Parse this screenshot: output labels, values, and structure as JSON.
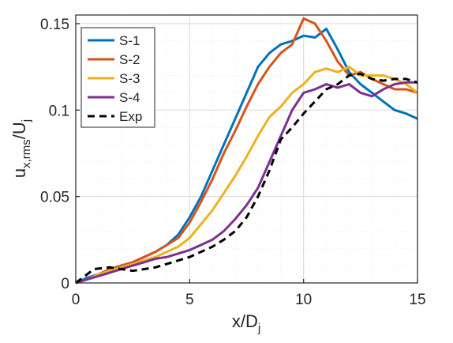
{
  "chart_data": {
    "type": "line",
    "xlabel": "x/D",
    "xlabel_sub": "j",
    "ylabel_main": "u",
    "ylabel_sub1": "x,rms",
    "ylabel_mid": "/U",
    "ylabel_sub2": "j",
    "xlim": [
      0,
      15
    ],
    "ylim": [
      0,
      0.155
    ],
    "xticks": [
      {
        "value": 0,
        "label": "0"
      },
      {
        "value": 5,
        "label": "5"
      },
      {
        "value": 10,
        "label": "10"
      },
      {
        "value": 15,
        "label": "15"
      }
    ],
    "yticks": [
      {
        "value": 0,
        "label": "0"
      },
      {
        "value": 0.05,
        "label": "0.05"
      },
      {
        "value": 0.1,
        "label": "0.1"
      },
      {
        "value": 0.15,
        "label": "0.15"
      }
    ],
    "grid": true,
    "minor_grid": true,
    "legend_position": "top-left",
    "series": [
      {
        "name": "S-1",
        "color": "#0072BD",
        "dash": "solid",
        "x": [
          0,
          0.5,
          1,
          1.5,
          2,
          2.5,
          3,
          3.5,
          4,
          4.5,
          5,
          5.5,
          6,
          6.5,
          7,
          7.5,
          8,
          8.5,
          9,
          9.5,
          10,
          10.5,
          11,
          11.5,
          12,
          12.5,
          13,
          13.5,
          14,
          14.5,
          15
        ],
        "y": [
          0,
          0.003,
          0.005,
          0.008,
          0.01,
          0.012,
          0.015,
          0.018,
          0.022,
          0.028,
          0.038,
          0.05,
          0.065,
          0.08,
          0.095,
          0.11,
          0.125,
          0.133,
          0.138,
          0.14,
          0.143,
          0.142,
          0.147,
          0.135,
          0.122,
          0.115,
          0.11,
          0.105,
          0.1,
          0.098,
          0.095
        ]
      },
      {
        "name": "S-2",
        "color": "#D95319",
        "dash": "solid",
        "x": [
          0,
          0.5,
          1,
          1.5,
          2,
          2.5,
          3,
          3.5,
          4,
          4.5,
          5,
          5.5,
          6,
          6.5,
          7,
          7.5,
          8,
          8.5,
          9,
          9.5,
          10,
          10.5,
          11,
          11.5,
          12,
          12.5,
          13,
          13.5,
          14,
          14.5,
          15
        ],
        "y": [
          0,
          0.002,
          0.005,
          0.008,
          0.01,
          0.012,
          0.015,
          0.018,
          0.022,
          0.026,
          0.035,
          0.047,
          0.06,
          0.075,
          0.088,
          0.102,
          0.115,
          0.125,
          0.133,
          0.138,
          0.153,
          0.15,
          0.14,
          0.128,
          0.12,
          0.122,
          0.118,
          0.115,
          0.112,
          0.112,
          0.11
        ]
      },
      {
        "name": "S-3",
        "color": "#EDB120",
        "dash": "solid",
        "x": [
          0,
          0.5,
          1,
          1.5,
          2,
          2.5,
          3,
          3.5,
          4,
          4.5,
          5,
          5.5,
          6,
          6.5,
          7,
          7.5,
          8,
          8.5,
          9,
          9.5,
          10,
          10.5,
          11,
          11.5,
          12,
          12.5,
          13,
          13.5,
          14,
          14.5,
          15
        ],
        "y": [
          0,
          0.002,
          0.005,
          0.007,
          0.009,
          0.011,
          0.013,
          0.015,
          0.018,
          0.021,
          0.026,
          0.034,
          0.042,
          0.052,
          0.062,
          0.073,
          0.085,
          0.096,
          0.102,
          0.11,
          0.115,
          0.122,
          0.124,
          0.122,
          0.125,
          0.12,
          0.12,
          0.12,
          0.118,
          0.115,
          0.11
        ]
      },
      {
        "name": "S-4",
        "color": "#7E2F8E",
        "dash": "solid",
        "x": [
          0,
          0.5,
          1,
          1.5,
          2,
          2.5,
          3,
          3.5,
          4,
          4.5,
          5,
          5.5,
          6,
          6.5,
          7,
          7.5,
          8,
          8.5,
          9,
          9.5,
          10,
          10.5,
          11,
          11.5,
          12,
          12.5,
          13,
          13.5,
          14,
          14.5,
          15
        ],
        "y": [
          0,
          0.002,
          0.004,
          0.006,
          0.008,
          0.01,
          0.012,
          0.014,
          0.015,
          0.017,
          0.019,
          0.022,
          0.025,
          0.03,
          0.037,
          0.045,
          0.055,
          0.07,
          0.085,
          0.1,
          0.11,
          0.112,
          0.115,
          0.113,
          0.115,
          0.11,
          0.108,
          0.112,
          0.115,
          0.116,
          0.116
        ]
      },
      {
        "name": "Exp",
        "color": "#000000",
        "dash": "dashed",
        "x": [
          0,
          0.8,
          1.5,
          2,
          2.5,
          3,
          3.5,
          4,
          4.5,
          5,
          5.5,
          6,
          6.5,
          7,
          7.5,
          8,
          8.5,
          9,
          9.5,
          10,
          10.5,
          11,
          11.5,
          12,
          12.5,
          13,
          13.5,
          14,
          14.5,
          15
        ],
        "y": [
          0,
          0.008,
          0.009,
          0.008,
          0.007,
          0.008,
          0.009,
          0.011,
          0.013,
          0.015,
          0.018,
          0.021,
          0.025,
          0.03,
          0.038,
          0.05,
          0.065,
          0.083,
          0.09,
          0.098,
          0.105,
          0.112,
          0.115,
          0.12,
          0.121,
          0.118,
          0.117,
          0.118,
          0.118,
          0.116
        ]
      }
    ]
  }
}
